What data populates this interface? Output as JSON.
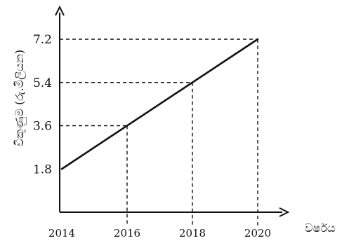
{
  "chart_data": {
    "type": "line",
    "title": "",
    "xlabel": "වර්ෂය",
    "ylabel": "විකුණුම (රු.මිලියන)",
    "x_ticks": [
      2014,
      2016,
      2018,
      2020
    ],
    "y_ticks": [
      1.8,
      3.6,
      5.4,
      7.2
    ],
    "xlim": [
      2014,
      2020
    ],
    "ylim": [
      0,
      7.2
    ],
    "grid": false,
    "reference_lines": "dashed",
    "series": [
      {
        "x": [
          2014,
          2020
        ],
        "y": [
          1.8,
          7.2
        ]
      }
    ],
    "reference_points": [
      {
        "x": 2016,
        "y": 3.6
      },
      {
        "x": 2018,
        "y": 5.4
      },
      {
        "x": 2020,
        "y": 7.2
      }
    ]
  }
}
